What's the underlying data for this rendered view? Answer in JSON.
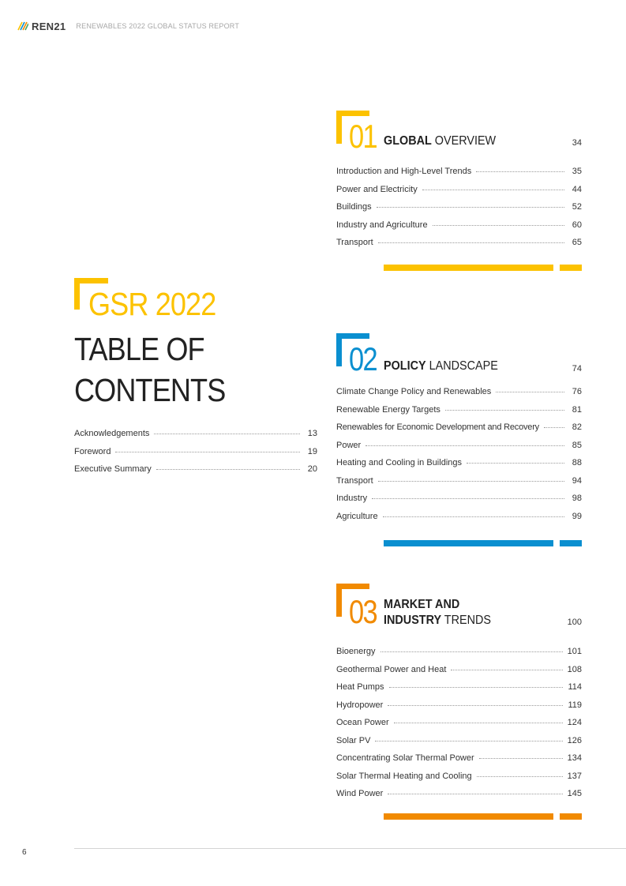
{
  "header": {
    "logo_text": "REN21",
    "report_title": "RENEWABLES 2022 GLOBAL STATUS REPORT"
  },
  "toc": {
    "gsr_label": "GSR 2022",
    "title_line1": "TABLE OF",
    "title_line2": "CONTENTS",
    "accent_color": "#fcc200",
    "front_matter": [
      {
        "label": "Acknowledgements",
        "page": "13"
      },
      {
        "label": "Foreword",
        "page": "19"
      },
      {
        "label": "Executive Summary",
        "page": "20"
      }
    ]
  },
  "sections": [
    {
      "number": "01",
      "title_bold": "GLOBAL",
      "title_rest": "OVERVIEW",
      "page": "34",
      "color": "#fcc200",
      "items": [
        {
          "label": "Introduction and High-Level Trends",
          "page": "35"
        },
        {
          "label": "Power and Electricity",
          "page": "44"
        },
        {
          "label": "Buildings",
          "page": "52"
        },
        {
          "label": "Industry and Agriculture",
          "page": "60"
        },
        {
          "label": "Transport",
          "page": "65"
        }
      ]
    },
    {
      "number": "02",
      "title_bold": "POLICY",
      "title_rest": "LANDSCAPE",
      "page": "74",
      "color": "#0a8fd0",
      "items": [
        {
          "label": "Climate Change Policy and Renewables",
          "page": "76"
        },
        {
          "label": "Renewable Energy Targets",
          "page": "81"
        },
        {
          "label": "Renewables for Economic Development and Recovery",
          "page": "82"
        },
        {
          "label": "Power",
          "page": "85"
        },
        {
          "label": "Heating and Cooling in Buildings",
          "page": "88"
        },
        {
          "label": "Transport",
          "page": "94"
        },
        {
          "label": "Industry",
          "page": "98"
        },
        {
          "label": "Agriculture",
          "page": "99"
        }
      ]
    },
    {
      "number": "03",
      "title_bold_line1": "MARKET AND",
      "title_bold_line2": "INDUSTRY",
      "title_rest": "TRENDS",
      "page": "100",
      "color": "#f18a00",
      "items": [
        {
          "label": "Bioenergy",
          "page": "101"
        },
        {
          "label": "Geothermal Power and Heat",
          "page": "108"
        },
        {
          "label": "Heat Pumps",
          "page": "114"
        },
        {
          "label": "Hydropower",
          "page": "119"
        },
        {
          "label": "Ocean Power",
          "page": "124"
        },
        {
          "label": "Solar PV",
          "page": "126"
        },
        {
          "label": "Concentrating Solar Thermal Power",
          "page": "134"
        },
        {
          "label": "Solar Thermal Heating and Cooling",
          "page": "137"
        },
        {
          "label": "Wind Power",
          "page": "145"
        }
      ]
    }
  ],
  "footer": {
    "page_number": "6"
  }
}
